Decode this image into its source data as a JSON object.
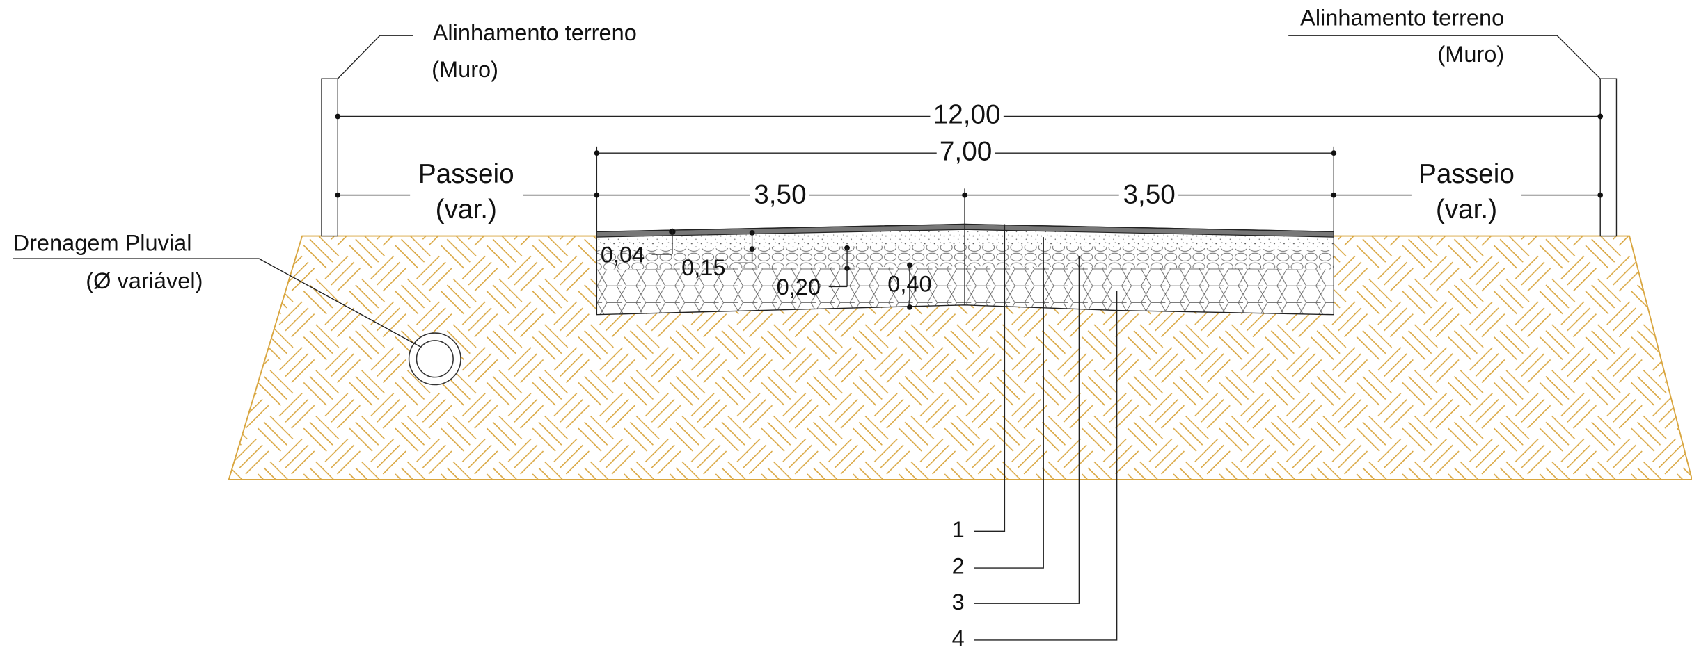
{
  "walls": {
    "left": {
      "title": "Alinhamento terreno",
      "subtitle": "(Muro)"
    },
    "right": {
      "title": "Alinhamento terreno",
      "subtitle": "(Muro)"
    }
  },
  "drainage": {
    "title": "Drenagem Pluvial",
    "subtitle": "(Ø variável)"
  },
  "dimensions": {
    "total": "12,00",
    "roadway": "7,00",
    "lane_left": "3,50",
    "lane_right": "3,50",
    "sidewalk_left": {
      "title": "Passeio",
      "subtitle": "(var.)"
    },
    "sidewalk_right": {
      "title": "Passeio",
      "subtitle": "(var.)"
    }
  },
  "layers": {
    "thickness": [
      "0,04",
      "0,15",
      "0,20",
      "0,40"
    ],
    "callouts": [
      "1",
      "2",
      "3",
      "4"
    ]
  }
}
